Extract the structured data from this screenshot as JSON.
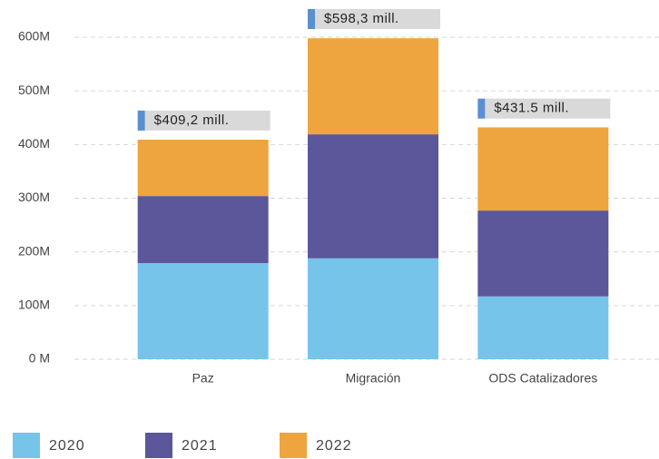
{
  "chart_data": {
    "type": "stacked_bar",
    "categories": [
      "Paz",
      "Migración",
      "ODS Catalizadores"
    ],
    "series": [
      {
        "name": "2020",
        "color": "#76c4ea",
        "values": [
          179,
          188,
          117
        ]
      },
      {
        "name": "2021",
        "color": "#5b579a",
        "values": [
          125,
          231,
          160
        ]
      },
      {
        "name": "2022",
        "color": "#eea43f",
        "values": [
          105,
          179,
          155
        ]
      }
    ],
    "totals": [
      409.2,
      598.3,
      431.5
    ],
    "total_labels": [
      "$409,2 mill.",
      "$598,3 mill.",
      "$431.5 mill."
    ],
    "ylim": [
      0,
      600
    ],
    "yticks": [
      {
        "value": 0,
        "label": "0 M"
      },
      {
        "value": 100,
        "label": "100M"
      },
      {
        "value": 200,
        "label": "200M"
      },
      {
        "value": 300,
        "label": "300M"
      },
      {
        "value": 400,
        "label": "400M"
      },
      {
        "value": 500,
        "label": "500M"
      },
      {
        "value": 600,
        "label": "600M"
      }
    ],
    "grid": true
  }
}
